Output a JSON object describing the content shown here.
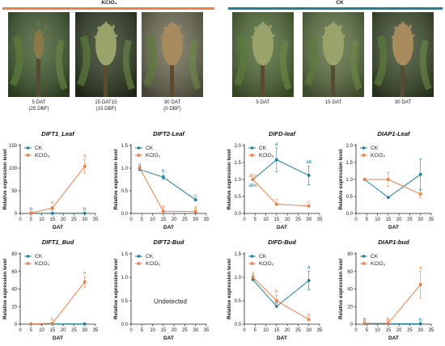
{
  "colors": {
    "ck": "#1f7f96",
    "kclo3": "#e9814a"
  },
  "header": {
    "kclo3_label": "KClO₃",
    "ck_label": "CK"
  },
  "photos": [
    {
      "id": "p1",
      "caption_lines": [
        "5 DAT",
        "(25 DBF)"
      ],
      "tone": "#3f5a2c"
    },
    {
      "id": "p2",
      "caption_lines": [
        "15 DAT15",
        "(15 DBF)"
      ],
      "tone": "#2c3a1f"
    },
    {
      "id": "p3",
      "caption_lines": [
        "30 DAT",
        "(0 DBF)"
      ],
      "tone": "#6b6b52"
    },
    {
      "id": "p4",
      "caption_lines": [
        "5 DAT"
      ],
      "tone": "#4f6a33"
    },
    {
      "id": "p5",
      "caption_lines": [
        "15 DAT"
      ],
      "tone": "#5c7040"
    },
    {
      "id": "p6",
      "caption_lines": [
        "30 DAT"
      ],
      "tone": "#3b4a2a"
    }
  ],
  "shared": {
    "xlabel": "DAT",
    "ylabel": "Relative expression level",
    "legend": [
      "CK",
      "KClO₃"
    ]
  },
  "chart_data": [
    {
      "type": "line",
      "title": "DIFT1_Leaf",
      "xlim": [
        0,
        35
      ],
      "ylim": [
        0,
        150
      ],
      "xticks": [
        0,
        5,
        10,
        15,
        20,
        25,
        30,
        35
      ],
      "yticks": [
        0,
        50,
        100,
        150
      ],
      "series": [
        {
          "name": "CK",
          "x": [
            5,
            15,
            30
          ],
          "y": [
            0.5,
            0.5,
            0.5
          ],
          "err": [
            0,
            0,
            0
          ],
          "letters": [
            "b",
            "b",
            "b"
          ]
        },
        {
          "name": "KClO₃",
          "x": [
            5,
            15,
            30
          ],
          "y": [
            1,
            12,
            104
          ],
          "err": [
            0,
            3,
            15
          ],
          "letters": [
            "",
            "b",
            "a"
          ]
        }
      ]
    },
    {
      "type": "line",
      "title": "DIFT2-Leaf",
      "xlim": [
        0,
        35
      ],
      "ylim": [
        0,
        1.5
      ],
      "xticks": [
        0,
        5,
        10,
        15,
        20,
        25,
        30,
        35
      ],
      "yticks": [
        0.0,
        0.5,
        1.0,
        1.5
      ],
      "series": [
        {
          "name": "CK",
          "x": [
            4,
            15,
            30
          ],
          "y": [
            0.97,
            0.8,
            0.3
          ],
          "err": [
            0,
            0.05,
            0
          ],
          "letters": [
            "a",
            "b",
            "c"
          ]
        },
        {
          "name": "KClO₃",
          "x": [
            4,
            15,
            30
          ],
          "y": [
            1.0,
            0.05,
            0.04
          ],
          "err": [
            0,
            0,
            0
          ],
          "letters": [
            "a",
            "d",
            "d"
          ]
        }
      ]
    },
    {
      "type": "line",
      "title": "DIFD-leaf",
      "xlim": [
        0,
        35
      ],
      "ylim": [
        0,
        2.0
      ],
      "xticks": [
        0,
        5,
        10,
        15,
        20,
        25,
        30,
        35
      ],
      "yticks": [
        0.0,
        0.5,
        1.0,
        1.5,
        2.0
      ],
      "series": [
        {
          "name": "CK",
          "x": [
            4,
            15,
            30
          ],
          "y": [
            1.0,
            1.58,
            1.12
          ],
          "err": [
            0,
            0.35,
            0.28
          ],
          "letters": [
            "abc",
            "a",
            "ab"
          ]
        },
        {
          "name": "KClO₃",
          "x": [
            4,
            15,
            30
          ],
          "y": [
            1.0,
            0.27,
            0.22
          ],
          "err": [
            0,
            0,
            0
          ],
          "letters": [
            "abc",
            "c",
            "c"
          ]
        }
      ]
    },
    {
      "type": "line",
      "title": "DIAP1-Leaf",
      "xlim": [
        0,
        35
      ],
      "ylim": [
        0,
        2.0
      ],
      "xticks": [
        0,
        5,
        10,
        15,
        20,
        25,
        30,
        35
      ],
      "yticks": [
        0.0,
        0.5,
        1.0,
        1.5,
        2.0
      ],
      "series": [
        {
          "name": "CK",
          "x": [
            4,
            15,
            30
          ],
          "y": [
            1.0,
            0.47,
            1.15
          ],
          "err": [
            0,
            0,
            0.45
          ],
          "letters": [
            "",
            "",
            ""
          ]
        },
        {
          "name": "KClO₃",
          "x": [
            4,
            15,
            30
          ],
          "y": [
            1.0,
            1.0,
            0.57
          ],
          "err": [
            0,
            0.2,
            0.1
          ],
          "letters": [
            "",
            "",
            ""
          ]
        }
      ]
    },
    {
      "type": "line",
      "title": "DIFT1_Bud",
      "xlim": [
        0,
        35
      ],
      "ylim": [
        0,
        80
      ],
      "xticks": [
        0,
        5,
        10,
        15,
        20,
        25,
        30,
        35
      ],
      "yticks": [
        0,
        20,
        40,
        60,
        80
      ],
      "series": [
        {
          "name": "CK",
          "x": [
            5,
            15,
            30
          ],
          "y": [
            0.3,
            0.3,
            0.3
          ],
          "err": [
            0,
            0,
            0
          ],
          "letters": [
            "",
            "",
            ""
          ]
        },
        {
          "name": "KClO₃",
          "x": [
            5,
            15,
            30
          ],
          "y": [
            0.3,
            1,
            48
          ],
          "err": [
            0,
            0,
            6
          ],
          "letters": [
            "",
            "b",
            "a"
          ]
        }
      ]
    },
    {
      "type": "line",
      "title": "DIFT2-Bud",
      "xlim": [
        0,
        35
      ],
      "ylim": [
        0,
        1.5
      ],
      "xticks": [
        0,
        5,
        10,
        15,
        20,
        25,
        30,
        35
      ],
      "yticks": [
        0.0,
        0.5,
        1.0,
        1.5
      ],
      "note": "Undetected",
      "series": []
    },
    {
      "type": "line",
      "title": "DIFD-Bud",
      "xlim": [
        0,
        35
      ],
      "ylim": [
        0,
        1.5
      ],
      "xticks": [
        0,
        5,
        10,
        15,
        20,
        25,
        30,
        35
      ],
      "yticks": [
        0.0,
        0.5,
        1.0,
        1.5
      ],
      "series": [
        {
          "name": "CK",
          "x": [
            4,
            15,
            30
          ],
          "y": [
            0.95,
            0.38,
            0.93
          ],
          "err": [
            0,
            0,
            0.2
          ],
          "letters": [
            "a",
            "b",
            "a"
          ]
        },
        {
          "name": "KClO₃",
          "x": [
            4,
            15,
            30
          ],
          "y": [
            1.0,
            0.5,
            0.1
          ],
          "err": [
            0,
            0.12,
            0
          ],
          "letters": [
            "a",
            "b",
            "b"
          ]
        }
      ]
    },
    {
      "type": "line",
      "title": "DIAP1-bud",
      "xlim": [
        0,
        35
      ],
      "ylim": [
        0,
        80
      ],
      "xticks": [
        0,
        5,
        10,
        15,
        20,
        25,
        30,
        35
      ],
      "yticks": [
        0,
        20,
        40,
        60,
        80
      ],
      "series": [
        {
          "name": "CK",
          "x": [
            4,
            15,
            30
          ],
          "y": [
            0.5,
            0.5,
            0.5
          ],
          "err": [
            0,
            0,
            0
          ],
          "letters": [
            "b",
            "b",
            "b"
          ]
        },
        {
          "name": "KClO₃",
          "x": [
            4,
            15,
            30
          ],
          "y": [
            1,
            1,
            45
          ],
          "err": [
            0,
            0,
            15
          ],
          "letters": [
            "b",
            "b",
            "a"
          ]
        }
      ]
    }
  ]
}
